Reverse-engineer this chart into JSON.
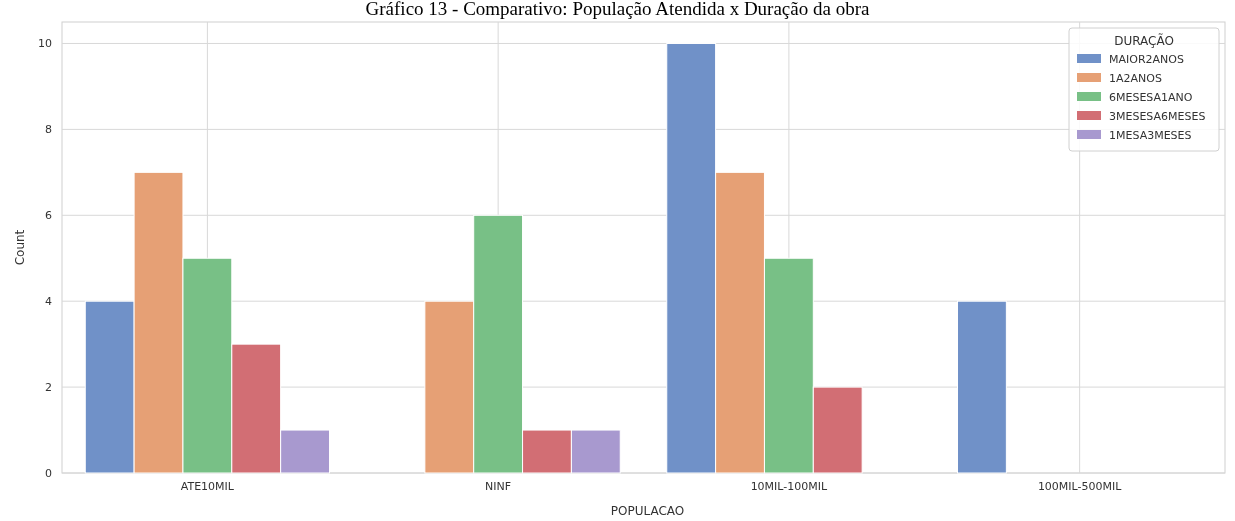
{
  "chart_data": {
    "type": "bar",
    "title": "Gráfico 13 - Comparativo: População Atendida x Duração da obra",
    "xlabel": "POPULACAO",
    "ylabel": "Count",
    "legend_title": "DURAÇÃO",
    "categories": [
      "ATE10MIL",
      "NINF",
      "10MIL-100MIL",
      "100MIL-500MIL"
    ],
    "series": [
      {
        "name": "MAIOR2ANOS",
        "color": "#7091c8",
        "values": [
          4,
          null,
          10,
          4
        ]
      },
      {
        "name": "1A2ANOS",
        "color": "#e6a075",
        "values": [
          7,
          4,
          7,
          null
        ]
      },
      {
        "name": "6MESESA1ANO",
        "color": "#78c086",
        "values": [
          5,
          6,
          5,
          null
        ]
      },
      {
        "name": "3MESESA6MESES",
        "color": "#d26e74",
        "values": [
          3,
          1,
          2,
          null
        ]
      },
      {
        "name": "1MESA3MESES",
        "color": "#a899cf",
        "values": [
          1,
          1,
          null,
          null
        ]
      }
    ],
    "ylim": [
      0,
      10.5
    ],
    "yticks": [
      0,
      2,
      4,
      6,
      8,
      10
    ],
    "grid": true,
    "legend": "top right"
  }
}
